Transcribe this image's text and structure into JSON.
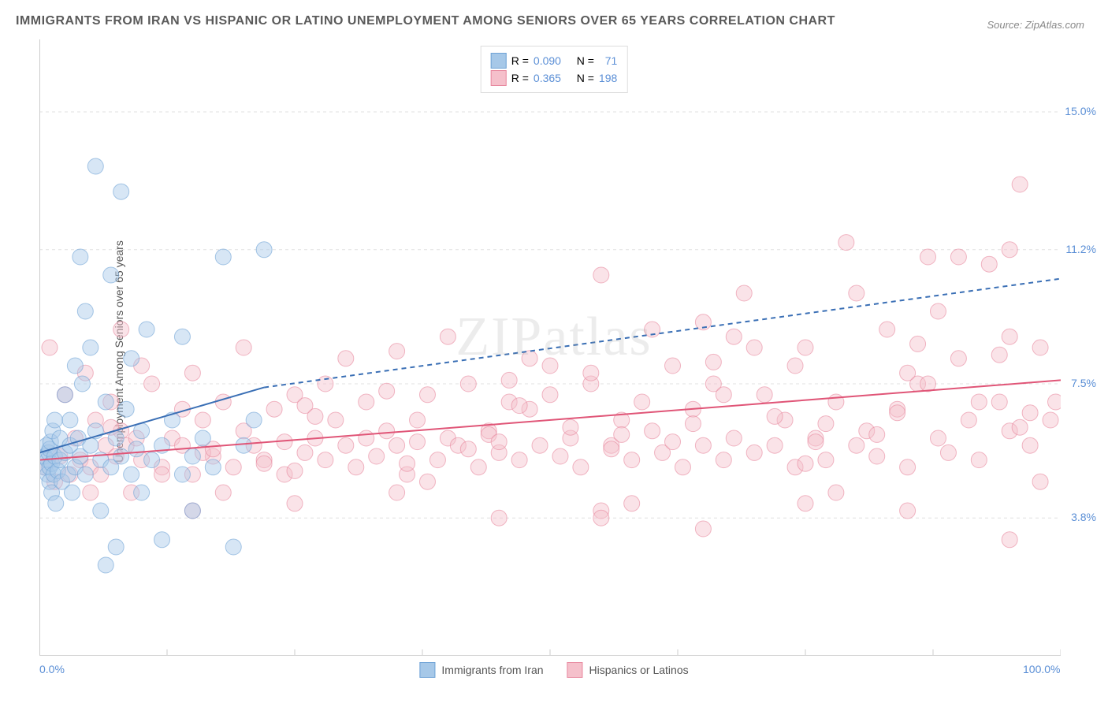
{
  "title": "IMMIGRANTS FROM IRAN VS HISPANIC OR LATINO UNEMPLOYMENT AMONG SENIORS OVER 65 YEARS CORRELATION CHART",
  "source": "Source: ZipAtlas.com",
  "watermark": "ZIPatlas",
  "y_axis_label": "Unemployment Among Seniors over 65 years",
  "chart": {
    "type": "scatter",
    "xlim": [
      0,
      100
    ],
    "ylim": [
      0,
      17
    ],
    "x_ticks": [
      0,
      12.5,
      25,
      37.5,
      50,
      62.5,
      75,
      87.5,
      100
    ],
    "x_tick_labels": {
      "0": "0.0%",
      "100": "100.0%"
    },
    "y_ticks": [
      3.8,
      7.5,
      11.2,
      15.0
    ],
    "y_tick_labels": [
      "3.8%",
      "7.5%",
      "11.2%",
      "15.0%"
    ],
    "grid_color": "#e0e0e0",
    "grid_dash": "4,4",
    "background_color": "#ffffff",
    "marker_radius": 10,
    "marker_opacity": 0.45,
    "series": [
      {
        "name": "Immigrants from Iran",
        "color": "#a6c8e8",
        "stroke": "#6fa3d6",
        "r": 0.09,
        "n": 71,
        "trend": {
          "x1": 0,
          "y1": 5.6,
          "x2": 22,
          "y2": 7.4,
          "x2_dash": 100,
          "y2_dash": 10.4,
          "color": "#3a6fb5",
          "width": 2
        },
        "points": [
          [
            0.5,
            5.2
          ],
          [
            0.5,
            5.5
          ],
          [
            0.7,
            5.8
          ],
          [
            0.8,
            5.0
          ],
          [
            0.8,
            5.4
          ],
          [
            0.9,
            5.6
          ],
          [
            1.0,
            4.8
          ],
          [
            1.0,
            5.2
          ],
          [
            1.0,
            5.7
          ],
          [
            1.1,
            5.9
          ],
          [
            1.2,
            4.5
          ],
          [
            1.2,
            5.3
          ],
          [
            1.3,
            6.2
          ],
          [
            1.4,
            5.0
          ],
          [
            1.5,
            5.5
          ],
          [
            1.5,
            6.5
          ],
          [
            1.6,
            4.2
          ],
          [
            1.8,
            5.1
          ],
          [
            2.0,
            5.4
          ],
          [
            2.0,
            6.0
          ],
          [
            2.2,
            4.8
          ],
          [
            2.5,
            5.6
          ],
          [
            2.5,
            7.2
          ],
          [
            2.8,
            5.0
          ],
          [
            3.0,
            5.8
          ],
          [
            3.0,
            6.5
          ],
          [
            3.2,
            4.5
          ],
          [
            3.5,
            5.2
          ],
          [
            3.5,
            8.0
          ],
          [
            3.8,
            6.0
          ],
          [
            4.0,
            5.5
          ],
          [
            4.0,
            11.0
          ],
          [
            4.2,
            7.5
          ],
          [
            4.5,
            5.0
          ],
          [
            4.5,
            9.5
          ],
          [
            5.0,
            5.8
          ],
          [
            5.0,
            8.5
          ],
          [
            5.5,
            6.2
          ],
          [
            5.5,
            13.5
          ],
          [
            6.0,
            4.0
          ],
          [
            6.0,
            5.4
          ],
          [
            6.5,
            7.0
          ],
          [
            6.5,
            2.5
          ],
          [
            7.0,
            5.2
          ],
          [
            7.0,
            10.5
          ],
          [
            7.5,
            6.0
          ],
          [
            7.5,
            3.0
          ],
          [
            8.0,
            5.5
          ],
          [
            8.0,
            12.8
          ],
          [
            8.5,
            6.8
          ],
          [
            9.0,
            5.0
          ],
          [
            9.0,
            8.2
          ],
          [
            9.5,
            5.7
          ],
          [
            10.0,
            4.5
          ],
          [
            10.0,
            6.2
          ],
          [
            10.5,
            9.0
          ],
          [
            11.0,
            5.4
          ],
          [
            12.0,
            3.2
          ],
          [
            12.0,
            5.8
          ],
          [
            13.0,
            6.5
          ],
          [
            14.0,
            5.0
          ],
          [
            14.0,
            8.8
          ],
          [
            15.0,
            4.0
          ],
          [
            15.0,
            5.5
          ],
          [
            16.0,
            6.0
          ],
          [
            17.0,
            5.2
          ],
          [
            18.0,
            11.0
          ],
          [
            19.0,
            3.0
          ],
          [
            20.0,
            5.8
          ],
          [
            21.0,
            6.5
          ],
          [
            22.0,
            11.2
          ]
        ]
      },
      {
        "name": "Hispanics or Latinos",
        "color": "#f5c0cb",
        "stroke": "#e8899f",
        "r": 0.365,
        "n": 198,
        "trend": {
          "x1": 0,
          "y1": 5.4,
          "x2": 100,
          "y2": 7.6,
          "color": "#e05577",
          "width": 2
        },
        "points": [
          [
            0.5,
            5.2
          ],
          [
            1,
            8.5
          ],
          [
            1.5,
            4.8
          ],
          [
            2,
            5.5
          ],
          [
            2.5,
            7.2
          ],
          [
            3,
            5.0
          ],
          [
            3.5,
            6.0
          ],
          [
            4,
            5.4
          ],
          [
            4.5,
            7.8
          ],
          [
            5,
            5.2
          ],
          [
            5.5,
            6.5
          ],
          [
            6,
            5.0
          ],
          [
            6.5,
            5.8
          ],
          [
            7,
            7.0
          ],
          [
            7.5,
            5.5
          ],
          [
            8,
            6.2
          ],
          [
            8.5,
            5.8
          ],
          [
            9,
            4.5
          ],
          [
            9.5,
            6.0
          ],
          [
            10,
            5.4
          ],
          [
            11,
            7.5
          ],
          [
            12,
            5.2
          ],
          [
            13,
            6.0
          ],
          [
            14,
            5.8
          ],
          [
            15,
            5.0
          ],
          [
            16,
            6.5
          ],
          [
            17,
            5.5
          ],
          [
            18,
            7.0
          ],
          [
            19,
            5.2
          ],
          [
            20,
            6.2
          ],
          [
            21,
            5.8
          ],
          [
            22,
            5.4
          ],
          [
            23,
            6.8
          ],
          [
            24,
            5.0
          ],
          [
            25,
            7.2
          ],
          [
            26,
            5.6
          ],
          [
            27,
            6.0
          ],
          [
            28,
            5.4
          ],
          [
            29,
            6.5
          ],
          [
            30,
            5.8
          ],
          [
            31,
            5.2
          ],
          [
            32,
            7.0
          ],
          [
            33,
            5.5
          ],
          [
            34,
            6.2
          ],
          [
            35,
            5.8
          ],
          [
            36,
            5.0
          ],
          [
            37,
            6.5
          ],
          [
            38,
            7.2
          ],
          [
            39,
            5.4
          ],
          [
            40,
            6.0
          ],
          [
            41,
            5.8
          ],
          [
            42,
            7.5
          ],
          [
            43,
            5.2
          ],
          [
            44,
            6.2
          ],
          [
            45,
            5.6
          ],
          [
            46,
            7.0
          ],
          [
            47,
            5.4
          ],
          [
            48,
            6.8
          ],
          [
            49,
            5.8
          ],
          [
            50,
            7.2
          ],
          [
            51,
            5.5
          ],
          [
            52,
            6.0
          ],
          [
            53,
            5.2
          ],
          [
            54,
            7.5
          ],
          [
            55,
            10.5
          ],
          [
            56,
            5.8
          ],
          [
            57,
            6.5
          ],
          [
            58,
            5.4
          ],
          [
            59,
            7.0
          ],
          [
            60,
            6.2
          ],
          [
            61,
            5.6
          ],
          [
            62,
            8.0
          ],
          [
            63,
            5.2
          ],
          [
            64,
            6.8
          ],
          [
            65,
            5.8
          ],
          [
            66,
            7.5
          ],
          [
            67,
            5.4
          ],
          [
            68,
            6.0
          ],
          [
            69,
            10.0
          ],
          [
            70,
            5.6
          ],
          [
            71,
            7.2
          ],
          [
            72,
            5.8
          ],
          [
            73,
            6.5
          ],
          [
            74,
            5.2
          ],
          [
            75,
            8.5
          ],
          [
            76,
            6.0
          ],
          [
            77,
            5.4
          ],
          [
            78,
            7.0
          ],
          [
            79,
            11.4
          ],
          [
            80,
            5.8
          ],
          [
            81,
            6.2
          ],
          [
            82,
            5.5
          ],
          [
            83,
            9.0
          ],
          [
            84,
            6.8
          ],
          [
            85,
            5.2
          ],
          [
            86,
            7.5
          ],
          [
            87,
            11.0
          ],
          [
            88,
            6.0
          ],
          [
            89,
            5.6
          ],
          [
            90,
            8.2
          ],
          [
            91,
            6.5
          ],
          [
            92,
            5.4
          ],
          [
            93,
            10.8
          ],
          [
            94,
            7.0
          ],
          [
            95,
            6.2
          ],
          [
            96,
            13.0
          ],
          [
            97,
            5.8
          ],
          [
            98,
            8.5
          ],
          [
            99,
            6.5
          ],
          [
            99.5,
            7.0
          ],
          [
            15,
            4.0
          ],
          [
            25,
            4.2
          ],
          [
            35,
            4.5
          ],
          [
            45,
            3.8
          ],
          [
            55,
            4.0
          ],
          [
            65,
            3.5
          ],
          [
            75,
            4.2
          ],
          [
            85,
            4.0
          ],
          [
            95,
            3.2
          ],
          [
            10,
            8.0
          ],
          [
            20,
            8.5
          ],
          [
            30,
            8.2
          ],
          [
            40,
            8.8
          ],
          [
            50,
            8.0
          ],
          [
            60,
            9.0
          ],
          [
            70,
            8.5
          ],
          [
            80,
            10.0
          ],
          [
            90,
            11.0
          ],
          [
            95,
            11.2
          ],
          [
            12,
            5.0
          ],
          [
            22,
            5.3
          ],
          [
            32,
            6.0
          ],
          [
            42,
            5.7
          ],
          [
            52,
            6.3
          ],
          [
            62,
            5.9
          ],
          [
            72,
            6.6
          ],
          [
            82,
            6.1
          ],
          [
            92,
            7.0
          ],
          [
            8,
            9.0
          ],
          [
            18,
            4.5
          ],
          [
            28,
            7.5
          ],
          [
            38,
            4.8
          ],
          [
            48,
            8.2
          ],
          [
            58,
            4.2
          ],
          [
            68,
            8.8
          ],
          [
            78,
            4.5
          ],
          [
            88,
            9.5
          ],
          [
            98,
            4.8
          ],
          [
            14,
            6.8
          ],
          [
            24,
            5.9
          ],
          [
            34,
            7.3
          ],
          [
            44,
            6.1
          ],
          [
            54,
            7.8
          ],
          [
            64,
            6.4
          ],
          [
            74,
            8.0
          ],
          [
            84,
            6.7
          ],
          [
            94,
            8.3
          ],
          [
            16,
            5.6
          ],
          [
            26,
            6.9
          ],
          [
            36,
            5.3
          ],
          [
            46,
            7.6
          ],
          [
            56,
            5.7
          ],
          [
            66,
            8.1
          ],
          [
            76,
            5.9
          ],
          [
            86,
            8.6
          ],
          [
            96,
            6.3
          ],
          [
            5,
            4.5
          ],
          [
            15,
            7.8
          ],
          [
            25,
            5.1
          ],
          [
            35,
            8.4
          ],
          [
            45,
            5.9
          ],
          [
            55,
            3.8
          ],
          [
            65,
            9.2
          ],
          [
            75,
            5.3
          ],
          [
            85,
            7.8
          ],
          [
            95,
            8.8
          ],
          [
            7,
            6.3
          ],
          [
            17,
            5.7
          ],
          [
            27,
            6.6
          ],
          [
            37,
            5.9
          ],
          [
            47,
            6.9
          ],
          [
            57,
            6.1
          ],
          [
            67,
            7.2
          ],
          [
            77,
            6.4
          ],
          [
            87,
            7.5
          ],
          [
            97,
            6.7
          ]
        ]
      }
    ]
  },
  "legend_top": {
    "r_label": "R =",
    "n_label": "N =",
    "rows": [
      {
        "swatch_fill": "#a6c8e8",
        "swatch_stroke": "#6fa3d6",
        "r": "0.090",
        "n": "71"
      },
      {
        "swatch_fill": "#f5c0cb",
        "swatch_stroke": "#e8899f",
        "r": "0.365",
        "n": "198"
      }
    ]
  },
  "legend_bottom": [
    {
      "swatch_fill": "#a6c8e8",
      "swatch_stroke": "#6fa3d6",
      "label": "Immigrants from Iran"
    },
    {
      "swatch_fill": "#f5c0cb",
      "swatch_stroke": "#e8899f",
      "label": "Hispanics or Latinos"
    }
  ]
}
